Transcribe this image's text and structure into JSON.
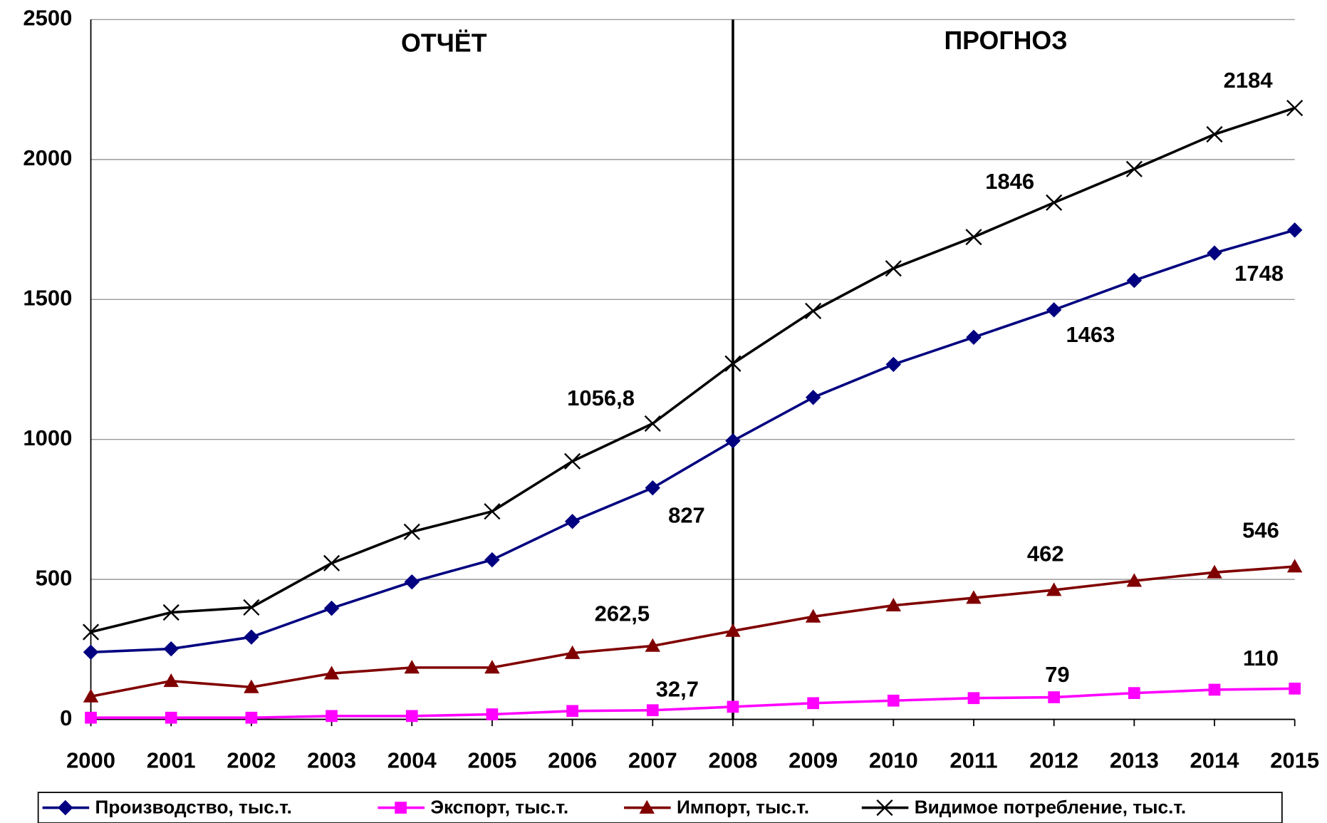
{
  "chart_data": {
    "type": "line",
    "categories": [
      "2000",
      "2001",
      "2002",
      "2003",
      "2004",
      "2005",
      "2006",
      "2007",
      "2008",
      "2009",
      "2010",
      "2011",
      "2012",
      "2013",
      "2014",
      "2015"
    ],
    "ylim": [
      0,
      2500
    ],
    "yticks": [
      0,
      500,
      1000,
      1500,
      2000,
      2500
    ],
    "grid": true,
    "legend": "bottom",
    "annotations": [
      {
        "text": "ОТЧЁТ",
        "category": "2004"
      },
      {
        "text": "ПРОГНОЗ",
        "category": "2011"
      }
    ],
    "divider": "2008",
    "series": [
      {
        "name": "Производство, тыс.т.",
        "color": "#000080",
        "marker": "diamond",
        "values": [
          240,
          252,
          294,
          397,
          491,
          570,
          707,
          827,
          995,
          1150,
          1268,
          1365,
          1463,
          1568,
          1666,
          1748
        ],
        "value_labels": [
          null,
          null,
          null,
          null,
          null,
          null,
          null,
          "827",
          null,
          null,
          null,
          null,
          "1463",
          null,
          null,
          "1748"
        ]
      },
      {
        "name": "Экспорт, тыс.т.",
        "color": "#ff00ff",
        "marker": "square",
        "values": [
          6,
          6,
          6,
          12,
          12,
          18,
          30,
          32.7,
          45,
          58,
          67,
          76,
          79,
          94,
          106,
          110
        ],
        "value_labels": [
          null,
          null,
          null,
          null,
          null,
          null,
          null,
          "32,7",
          null,
          null,
          null,
          null,
          "79",
          null,
          null,
          "110"
        ]
      },
      {
        "name": "Импорт, тыс.т.",
        "color": "#800000",
        "marker": "triangle",
        "values": [
          82,
          137,
          115,
          164,
          185,
          185,
          237,
          262.5,
          316,
          367,
          407,
          434,
          462,
          495,
          525,
          546
        ],
        "value_labels": [
          null,
          null,
          null,
          null,
          null,
          null,
          null,
          "262,5",
          null,
          null,
          null,
          null,
          "462",
          null,
          null,
          "546"
        ]
      },
      {
        "name": "Видимое потребление, тыс.т.",
        "color": "#000000",
        "marker": "x",
        "values": [
          312,
          382,
          400,
          558,
          670,
          743,
          922,
          1056.8,
          1271,
          1459,
          1611,
          1723,
          1846,
          1966,
          2090,
          2184
        ],
        "value_labels": [
          null,
          null,
          null,
          null,
          null,
          null,
          null,
          "1056,8",
          null,
          null,
          null,
          null,
          "1846",
          null,
          null,
          "2184"
        ]
      }
    ]
  }
}
